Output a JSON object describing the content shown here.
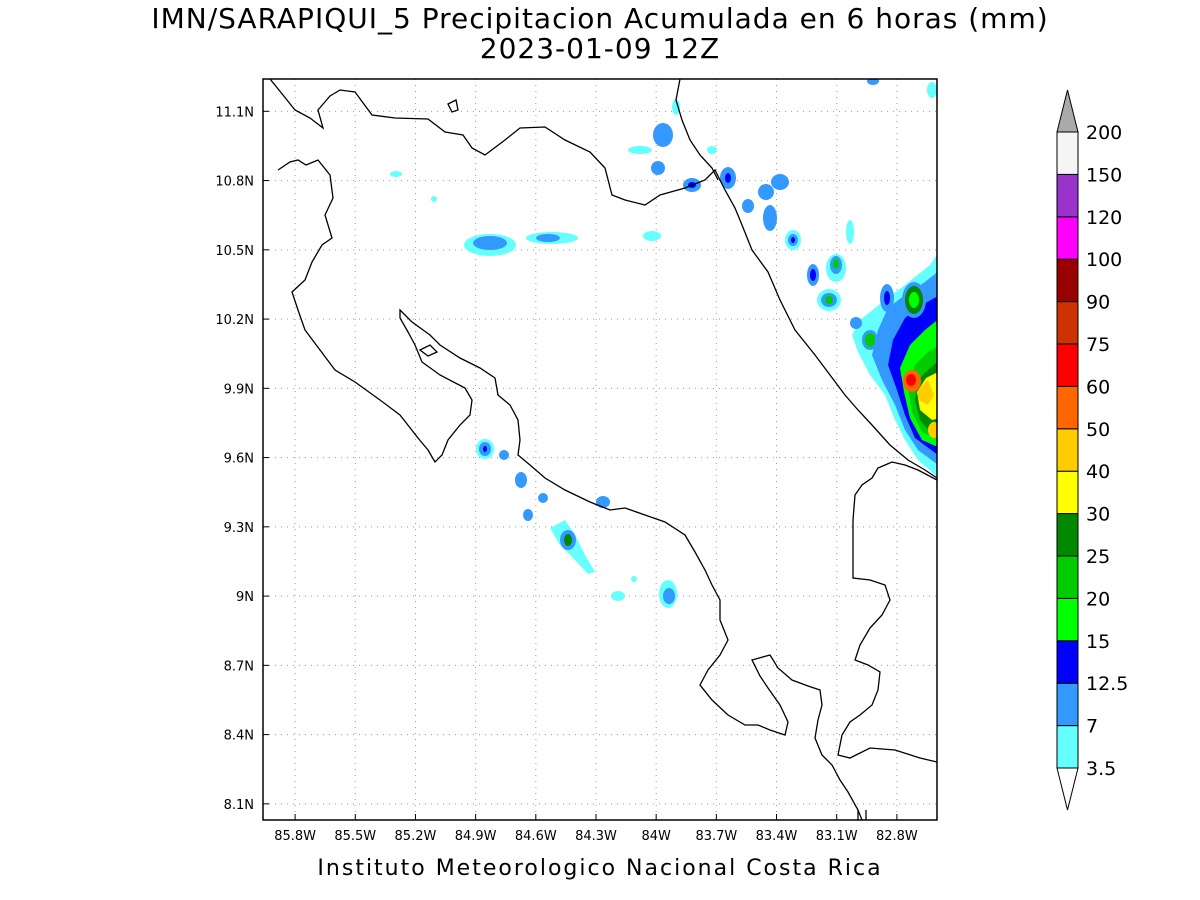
{
  "title": "IMN/SARAPIQUI_5 Precipitacion Acumulada en 6 horas (mm)",
  "subtitle": "2023-01-09 12Z",
  "footer": "Instituto Meteorologico Nacional Costa Rica",
  "map": {
    "lon_range": [
      -85.96,
      -82.6
    ],
    "lat_range": [
      8.03,
      11.24
    ],
    "lon_ticks": [
      {
        "value": -85.8,
        "label": "85.8W"
      },
      {
        "value": -85.5,
        "label": "85.5W"
      },
      {
        "value": -85.2,
        "label": "85.2W"
      },
      {
        "value": -84.9,
        "label": "84.9W"
      },
      {
        "value": -84.6,
        "label": "84.6W"
      },
      {
        "value": -84.3,
        "label": "84.3W"
      },
      {
        "value": -84.0,
        "label": "84W"
      },
      {
        "value": -83.7,
        "label": "83.7W"
      },
      {
        "value": -83.4,
        "label": "83.4W"
      },
      {
        "value": -83.1,
        "label": "83.1W"
      },
      {
        "value": -82.8,
        "label": "82.8W"
      }
    ],
    "lat_ticks": [
      {
        "value": 11.1,
        "label": "11.1N"
      },
      {
        "value": 10.8,
        "label": "10.8N"
      },
      {
        "value": 10.5,
        "label": "10.5N"
      },
      {
        "value": 10.2,
        "label": "10.2N"
      },
      {
        "value": 9.9,
        "label": "9.9N"
      },
      {
        "value": 9.6,
        "label": "9.6N"
      },
      {
        "value": 9.3,
        "label": "9.3N"
      },
      {
        "value": 9.0,
        "label": "9N"
      },
      {
        "value": 8.7,
        "label": "8.7N"
      },
      {
        "value": 8.4,
        "label": "8.4N"
      },
      {
        "value": 8.1,
        "label": "8.1N"
      }
    ],
    "grid": "dotted"
  },
  "legend": {
    "units": "mm",
    "levels": [
      {
        "label": "3.5",
        "color": "#66ffff"
      },
      {
        "label": "7",
        "color": "#3399ff"
      },
      {
        "label": "12.5",
        "color": "#0000ff"
      },
      {
        "label": "15",
        "color": "#00ff00"
      },
      {
        "label": "20",
        "color": "#00cc00"
      },
      {
        "label": "25",
        "color": "#008800"
      },
      {
        "label": "30",
        "color": "#ffff00"
      },
      {
        "label": "40",
        "color": "#ffcc00"
      },
      {
        "label": "50",
        "color": "#ff6600"
      },
      {
        "label": "60",
        "color": "#ff0000"
      },
      {
        "label": "75",
        "color": "#cc3300"
      },
      {
        "label": "90",
        "color": "#990000"
      },
      {
        "label": "100",
        "color": "#ff00ff"
      },
      {
        "label": "120",
        "color": "#9933cc"
      },
      {
        "label": "150",
        "color": "#f5f5f5"
      },
      {
        "label": "200",
        "color": "#aaaaaa"
      }
    ]
  }
}
